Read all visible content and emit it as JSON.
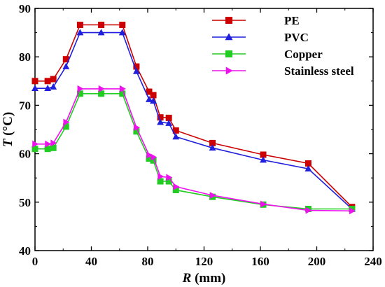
{
  "chart_data": {
    "type": "line",
    "xlabel_symbol": "R",
    "xlabel_unit": " (mm)",
    "ylabel_symbol": "T",
    "ylabel_unit": " (°C)",
    "xlim": [
      0,
      240
    ],
    "ylim": [
      40,
      90
    ],
    "xticks": [
      0,
      40,
      80,
      120,
      160,
      200,
      240
    ],
    "yticks": [
      40,
      50,
      60,
      70,
      80,
      90
    ],
    "grid": false,
    "legend_position": "top-right",
    "series": [
      {
        "name": "PE",
        "color": "#cc0000",
        "marker": "square",
        "x": [
          0,
          9,
          13,
          22,
          32,
          47,
          62,
          72,
          81,
          84,
          89,
          95,
          100,
          126,
          162,
          194,
          225
        ],
        "y": [
          75,
          75,
          75.4,
          79.5,
          86.6,
          86.6,
          86.6,
          78,
          72.8,
          72.1,
          67.5,
          67.4,
          64.8,
          62.2,
          59.8,
          58,
          49
        ]
      },
      {
        "name": "PVC",
        "color": "#1f1fdd",
        "marker": "triangle-up",
        "x": [
          0,
          9,
          13,
          22,
          32,
          47,
          62,
          72,
          81,
          84,
          89,
          95,
          100,
          126,
          162,
          194,
          225
        ],
        "y": [
          73.5,
          73.5,
          73.8,
          78,
          85,
          85,
          85,
          77,
          71.2,
          70.9,
          66.5,
          66.3,
          63.5,
          61.2,
          58.7,
          56.9,
          48.6
        ]
      },
      {
        "name": "Copper",
        "color": "#22cc22",
        "marker": "square",
        "x": [
          0,
          9,
          13,
          22,
          32,
          47,
          62,
          72,
          81,
          84,
          89,
          95,
          100,
          126,
          162,
          194,
          225
        ],
        "y": [
          61,
          61,
          61.2,
          65.6,
          72.4,
          72.4,
          72.4,
          64.6,
          59,
          58.6,
          54.3,
          54.3,
          52.5,
          51.1,
          49.5,
          48.6,
          48.6
        ]
      },
      {
        "name": "Stainless steel",
        "color": "#ee11ee",
        "marker": "triangle-right",
        "x": [
          0,
          9,
          13,
          22,
          32,
          47,
          62,
          72,
          81,
          84,
          89,
          95,
          100,
          126,
          162,
          194,
          225
        ],
        "y": [
          62,
          62,
          62.2,
          66.5,
          73.4,
          73.4,
          73.4,
          65.4,
          59.7,
          59.3,
          55.3,
          55.1,
          53.2,
          51.4,
          49.6,
          48.3,
          48.2
        ]
      }
    ]
  }
}
